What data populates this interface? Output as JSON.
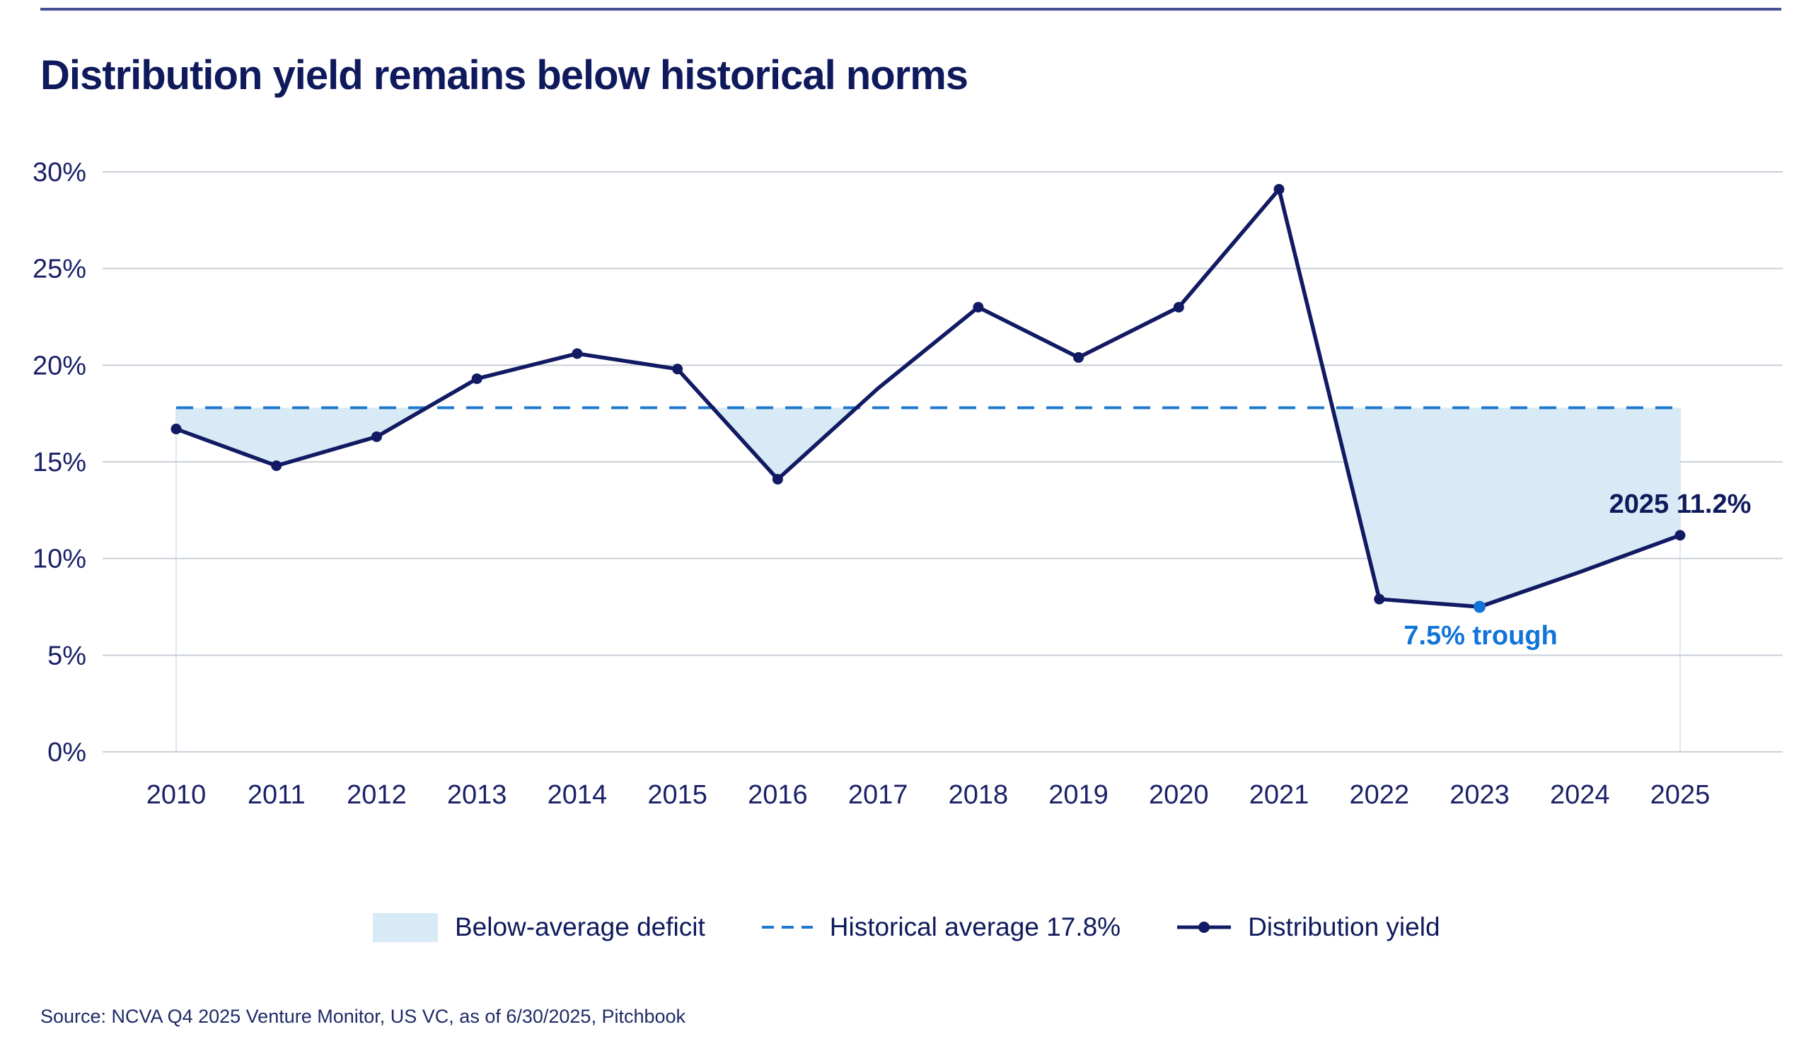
{
  "page": {
    "title": "Distribution yield remains below historical norms",
    "source": "Source: NCVA Q4 2025 Venture Monitor, US VC, as of 6/30/2025, Pitchbook"
  },
  "legend": {
    "items": [
      {
        "label": "Below-average deficit",
        "icon": "area-swatch"
      },
      {
        "label": "Historical average 17.8%",
        "icon": "dashed-line"
      },
      {
        "label": "Distribution yield",
        "icon": "line-with-dot"
      }
    ]
  },
  "annotations": {
    "end_label": "2025 11.2%",
    "trough_label": "7.5% trough"
  },
  "colors": {
    "navy_line": "#111a63",
    "navy_text": "#0f1a5c",
    "axis_text": "#1b2168",
    "blue_accent": "#1074d8",
    "dashed_blue": "#1e78cd",
    "deficit_fill": "#d8eaf5",
    "gridline": "#c9cfd8",
    "guide_line": "#dde7f1",
    "top_rule": "#4a4f93"
  },
  "chart_data": {
    "type": "line",
    "title": "Distribution yield remains below historical norms",
    "categories": [
      "2010",
      "2011",
      "2012",
      "2013",
      "2014",
      "2015",
      "2016",
      "2017",
      "2018",
      "2019",
      "2020",
      "2021",
      "2022",
      "2023",
      "2024",
      "2025"
    ],
    "series": [
      {
        "name": "Distribution yield",
        "values": [
          16.7,
          14.8,
          16.3,
          19.3,
          20.6,
          19.8,
          14.1,
          18.8,
          23.0,
          20.4,
          23.0,
          29.1,
          7.9,
          7.5,
          9.3,
          11.2
        ]
      }
    ],
    "years_without_markers": [
      "2017",
      "2024"
    ],
    "average_line": {
      "label": "Historical average 17.8%",
      "value": 17.8
    },
    "deficit_area_label": "Below-average deficit",
    "highlight_point": {
      "year": "2023",
      "value": 7.5,
      "label": "7.5% trough"
    },
    "end_point_label": {
      "year": "2025",
      "value": 11.2,
      "label": "2025 11.2%"
    },
    "xlabel": "",
    "ylabel": "",
    "y_ticks": [
      "30%",
      "25%",
      "20%",
      "15%",
      "10%",
      "5%",
      "0%"
    ],
    "y_tick_values": [
      30,
      25,
      20,
      15,
      10,
      5,
      0
    ],
    "ylim": [
      0,
      30
    ],
    "grid": "horizontal",
    "legend_position": "bottom"
  }
}
